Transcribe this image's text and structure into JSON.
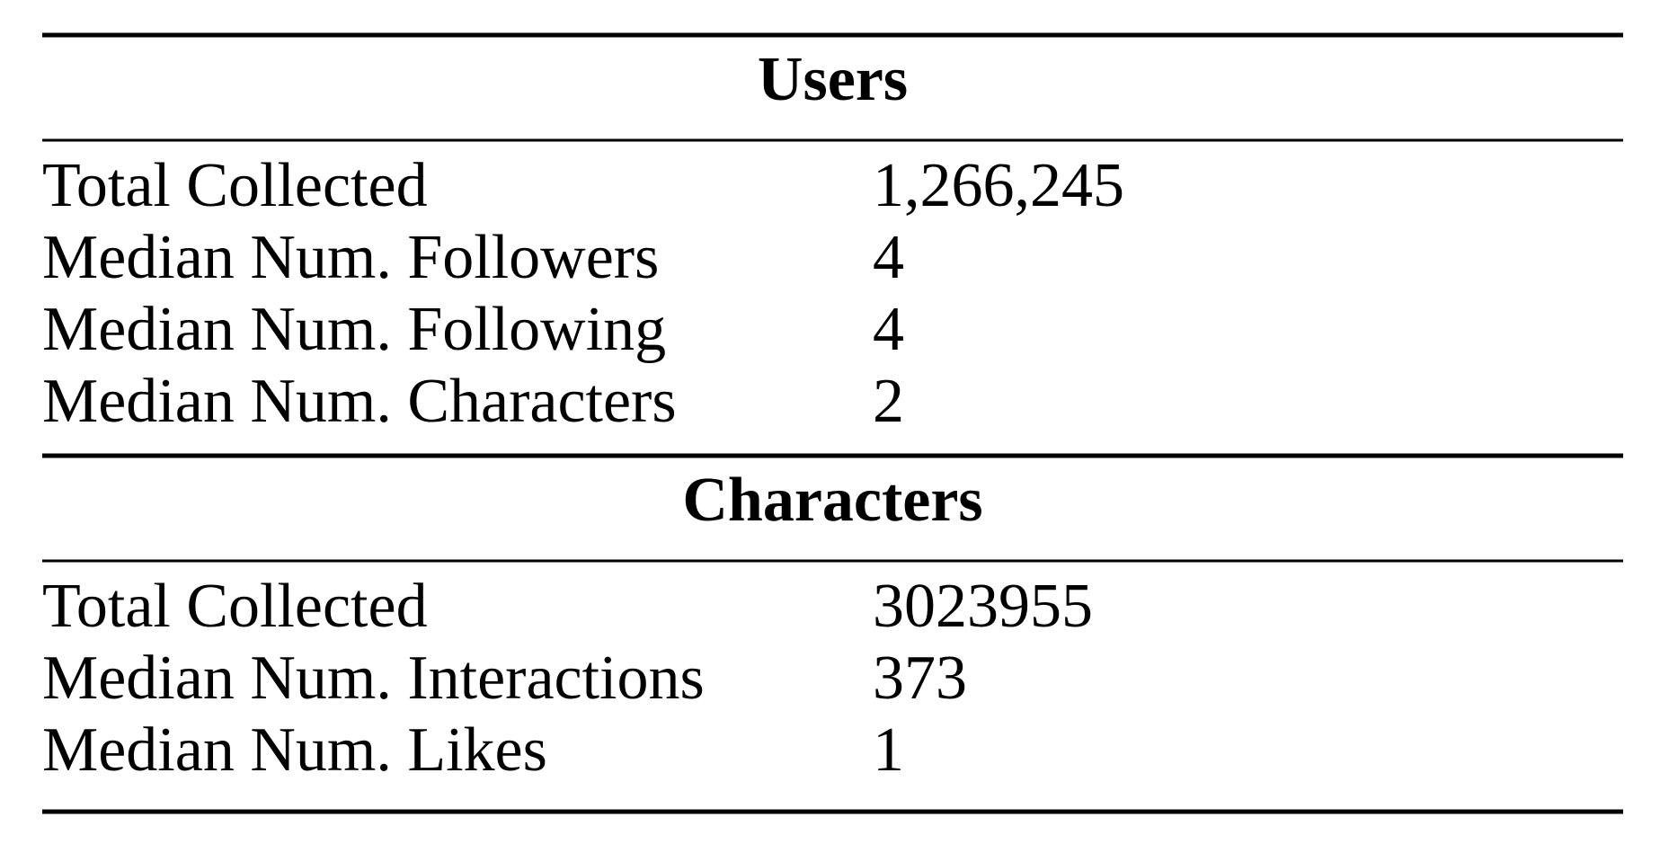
{
  "table": {
    "sections": [
      {
        "title": "Users",
        "rows": [
          [
            "Total Collected",
            "1,266,245"
          ],
          [
            "Median Num. Followers",
            "4"
          ],
          [
            "Median Num. Following",
            "4"
          ],
          [
            "Median Num. Characters",
            "2"
          ]
        ]
      },
      {
        "title": "Characters",
        "rows": [
          [
            "Total Collected",
            "3023955"
          ],
          [
            "Median Num. Interactions",
            "373"
          ],
          [
            "Median Num. Likes",
            "1"
          ]
        ]
      }
    ]
  }
}
